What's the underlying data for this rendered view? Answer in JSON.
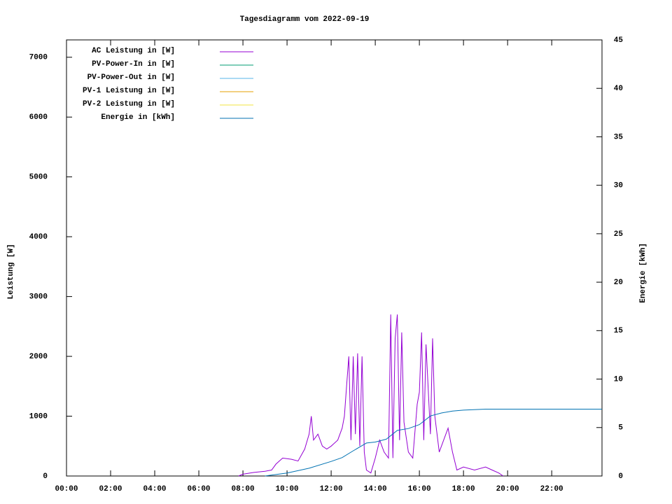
{
  "chart_data": {
    "type": "line",
    "title": "Tagesdiagramm vom 2022-09-19",
    "ylabel": "Leistung [W]",
    "y2label": "Energie [kWh]",
    "xlim": [
      0,
      24.28
    ],
    "xticks": [
      {
        "value": 0,
        "label": "00:00"
      },
      {
        "value": 2,
        "label": "02:00"
      },
      {
        "value": 4,
        "label": "04:00"
      },
      {
        "value": 6,
        "label": "06:00"
      },
      {
        "value": 8,
        "label": "08:00"
      },
      {
        "value": 10,
        "label": "10:00"
      },
      {
        "value": 12,
        "label": "12:00"
      },
      {
        "value": 14,
        "label": "14:00"
      },
      {
        "value": 16,
        "label": "16:00"
      },
      {
        "value": 18,
        "label": "18:00"
      },
      {
        "value": 20,
        "label": "20:00"
      },
      {
        "value": 22,
        "label": "22:00"
      }
    ],
    "ylim": [
      0,
      7290
    ],
    "yticks": [
      0,
      1000,
      2000,
      3000,
      4000,
      5000,
      6000,
      7000
    ],
    "y2lim": [
      0,
      45
    ],
    "y2ticks": [
      0,
      5,
      10,
      15,
      20,
      25,
      30,
      35,
      40,
      45
    ],
    "series": [
      {
        "name": "AC Leistung in [W]",
        "color": "#9400d3",
        "x": [
          7.8,
          8.0,
          8.5,
          9.0,
          9.3,
          9.5,
          9.8,
          10.2,
          10.5,
          10.8,
          11.0,
          11.1,
          11.2,
          11.4,
          11.6,
          11.8,
          12.0,
          12.3,
          12.5,
          12.6,
          12.7,
          12.8,
          12.9,
          13.0,
          13.1,
          13.2,
          13.3,
          13.4,
          13.5,
          13.6,
          13.8,
          14.0,
          14.2,
          14.4,
          14.6,
          14.7,
          14.8,
          14.9,
          15.0,
          15.1,
          15.2,
          15.3,
          15.5,
          15.7,
          15.9,
          16.0,
          16.1,
          16.2,
          16.3,
          16.5,
          16.6,
          16.7,
          16.9,
          17.1,
          17.3,
          17.5,
          17.7,
          18.0,
          18.5,
          19.0,
          19.3,
          19.6,
          19.8
        ],
        "values": [
          0,
          30,
          60,
          80,
          100,
          200,
          300,
          280,
          250,
          450,
          700,
          1000,
          600,
          700,
          500,
          450,
          500,
          600,
          800,
          1000,
          1500,
          2000,
          600,
          2000,
          700,
          2050,
          500,
          2000,
          400,
          100,
          50,
          300,
          600,
          400,
          300,
          2700,
          300,
          2300,
          2700,
          600,
          2400,
          900,
          400,
          300,
          1200,
          1400,
          2400,
          600,
          2200,
          700,
          2300,
          1000,
          400,
          600,
          800,
          400,
          100,
          150,
          100,
          150,
          100,
          50,
          0
        ]
      },
      {
        "name": "PV-Power-In in [W]",
        "color": "#009e73",
        "x": [],
        "values": []
      },
      {
        "name": "PV-Power-Out in [W]",
        "color": "#56b4e9",
        "x": [],
        "values": []
      },
      {
        "name": "PV-1 Leistung in [W]",
        "color": "#e69f00",
        "x": [],
        "values": []
      },
      {
        "name": "PV-2 Leistung in [W]",
        "color": "#f0e442",
        "x": [],
        "values": []
      },
      {
        "name": "Energie in [kWh]",
        "color": "#0072b2",
        "axis": "y2",
        "x": [
          9.0,
          10.0,
          11.0,
          12.0,
          12.5,
          13.0,
          13.6,
          14.0,
          14.5,
          15.0,
          15.5,
          16.0,
          16.5,
          17.0,
          17.5,
          18.0,
          19.0,
          24.28
        ],
        "values": [
          0,
          0.3,
          0.8,
          1.5,
          1.9,
          2.6,
          3.4,
          3.5,
          3.8,
          4.7,
          4.9,
          5.3,
          6.2,
          6.5,
          6.7,
          6.8,
          6.9,
          6.9
        ]
      }
    ]
  }
}
